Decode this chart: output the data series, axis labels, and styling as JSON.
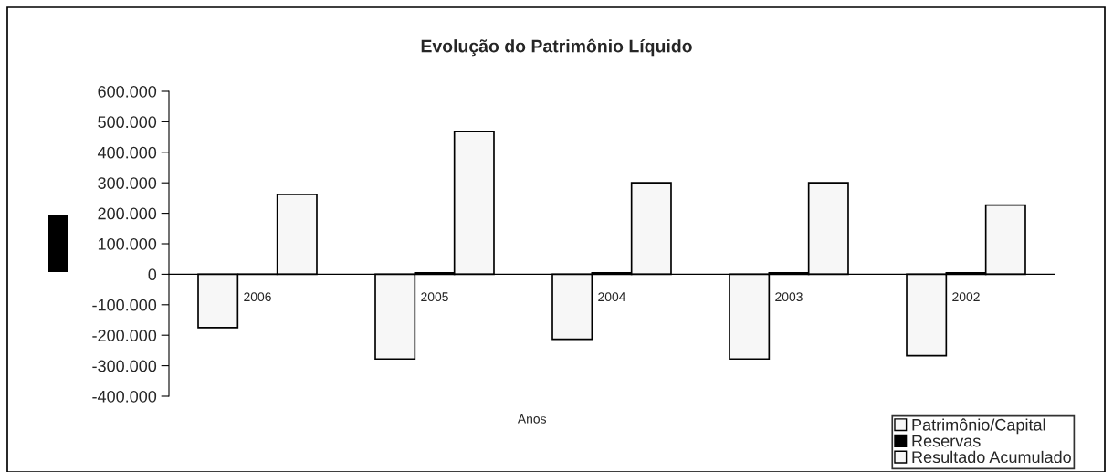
{
  "chart_data": {
    "type": "bar",
    "title": "Evolução do Patrimônio Líquido",
    "xlabel": "Anos",
    "categories": [
      "2006",
      "2005",
      "2004",
      "2003",
      "2002"
    ],
    "series": [
      {
        "name": "Patrimônio/Capital",
        "color": "#f7f7f7",
        "values": [
          -175000,
          -278000,
          -213000,
          -278000,
          -267000
        ]
      },
      {
        "name": "Reservas",
        "color": "#000000",
        "values": [
          0,
          5000,
          5000,
          5000,
          5000
        ]
      },
      {
        "name": "Resultado Acumulado",
        "color": "#f7f7f7",
        "values": [
          262000,
          468000,
          300000,
          300000,
          227000
        ]
      }
    ],
    "ylim": [
      -400000,
      600000
    ],
    "yticks": [
      {
        "value": -400000,
        "label": "-400.000"
      },
      {
        "value": -300000,
        "label": "-300.000"
      },
      {
        "value": -200000,
        "label": "-200.000"
      },
      {
        "value": -100000,
        "label": "-100.000"
      },
      0,
      {
        "value": 100000,
        "label": "100.000"
      },
      {
        "value": 200000,
        "label": "200.000"
      },
      {
        "value": 300000,
        "label": "300.000"
      },
      {
        "value": 400000,
        "label": "400.000"
      },
      {
        "value": 500000,
        "label": "500.000"
      },
      {
        "value": 600000,
        "label": "600.000"
      }
    ],
    "grid": false,
    "legend": "bottom right"
  }
}
